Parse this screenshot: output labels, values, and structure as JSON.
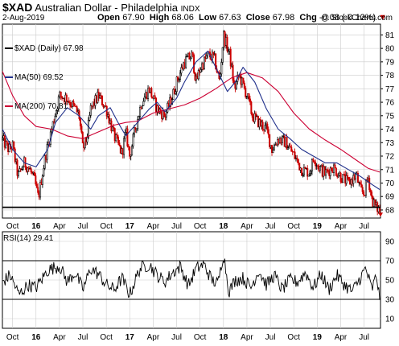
{
  "header": {
    "ticker": "$XAD",
    "name": "Australian Dollar - Philadelphia",
    "exchange": "INDX",
    "date": "2-Aug-2019",
    "open_label": "Open",
    "open": "67.90",
    "high_label": "High",
    "high": "68.06",
    "low_label": "Low",
    "low": "67.63",
    "close_label": "Close",
    "close": "67.98",
    "chg_label": "Chg",
    "chg": "-0.08 (-0.12%)",
    "chg_arrow": "▼",
    "copyright": "@ StockCharts.com"
  },
  "legend": {
    "price": "$XAD (Daily) 67.98",
    "ma50": "MA(50) 69.52",
    "ma200": "MA(200) 70.81"
  },
  "rsi_label": "RSI(14) 29.41",
  "colors": {
    "up": "#000000",
    "down": "#cc0000",
    "ma50": "#1f2f8a",
    "ma200": "#cc0033",
    "grid": "#cccccc",
    "support": "#000000",
    "arrow": "#cc0000"
  },
  "chart_data": [
    {
      "type": "line",
      "title": "$XAD Australian Dollar - Philadelphia",
      "ylim": [
        67.4,
        81.8
      ],
      "y_ticks": [
        68,
        69,
        70,
        71,
        72,
        73,
        74,
        75,
        76,
        77,
        78,
        79,
        80,
        81
      ],
      "x_tick_labels": [
        "Oct",
        "16",
        "Apr",
        "Jul",
        "Oct",
        "17",
        "Apr",
        "Jul",
        "Oct",
        "18",
        "Apr",
        "Jul",
        "Oct",
        "19",
        "Apr",
        "Jul"
      ],
      "x_ticks_month": [
        0,
        3,
        6,
        9,
        12,
        15,
        18,
        21,
        24,
        27,
        30,
        33,
        36,
        39,
        42,
        45
      ],
      "x_range_month": [
        -1.3,
        47.1
      ],
      "horizontal_line": 68.2,
      "series": [
        {
          "name": "$XAD (Daily) 67.98",
          "month": [
            -1.3,
            -0.5,
            0,
            0.7,
            1.5,
            2.2,
            2.8,
            3.3,
            4.2,
            5.2,
            6,
            7,
            8,
            8.5,
            9,
            9.5,
            10,
            11,
            12,
            13,
            14,
            14.5,
            15,
            15.7,
            16.5,
            17.5,
            18.5,
            19.5,
            20.5,
            21,
            22,
            23,
            23.5,
            24,
            25,
            25.8,
            26.5,
            27,
            27.8,
            28.4,
            29,
            30,
            30.7,
            31.5,
            32.5,
            33.2,
            34,
            35,
            36,
            37,
            38,
            38.6,
            39.2,
            40,
            41,
            42,
            43,
            44,
            44.5,
            45,
            45.5,
            46,
            46.5,
            47
          ],
          "values": [
            73.2,
            72.5,
            72.8,
            70.5,
            71.5,
            71,
            70.2,
            68.9,
            72,
            74.5,
            76.5,
            76.3,
            75.5,
            75.1,
            72.5,
            73.3,
            75.5,
            76.5,
            75.5,
            73.5,
            72.2,
            73.8,
            72,
            74,
            76,
            77,
            75.5,
            75,
            76.5,
            77.5,
            79,
            79.5,
            77.5,
            78.5,
            79.5,
            79.3,
            77.5,
            81,
            79.5,
            77,
            78,
            76.5,
            75,
            74.5,
            74,
            72.5,
            73.3,
            73,
            72.1,
            71,
            70.8,
            71.9,
            71.2,
            70.7,
            71.2,
            70.5,
            70,
            70.6,
            69.5,
            69.2,
            70.5,
            68.8,
            68.2,
            67.98
          ]
        },
        {
          "name": "MA(50) 69.52",
          "month": [
            -1.3,
            0,
            1.5,
            3,
            4.5,
            5.5,
            7,
            8.5,
            10,
            11,
            12.5,
            13.5,
            14.5,
            16,
            17.5,
            18.5,
            19.5,
            21,
            22,
            23.5,
            25,
            26.5,
            27.5,
            28.5,
            29.5,
            31,
            32.5,
            34,
            35.5,
            37,
            38.5,
            40,
            41.5,
            43,
            44.5,
            46,
            47
          ],
          "values": [
            74,
            72.5,
            71.5,
            71.2,
            72.5,
            74.5,
            75.6,
            75,
            74,
            75,
            75.6,
            74.5,
            73.5,
            74.5,
            75.5,
            76,
            75.3,
            76.3,
            77.5,
            79,
            79.8,
            78,
            76.8,
            77.5,
            78.6,
            77.5,
            75.5,
            74,
            73.3,
            72.5,
            72,
            71.5,
            71.5,
            71,
            70.5,
            69.9,
            69.52
          ]
        },
        {
          "name": "MA(200) 70.81",
          "month": [
            -1.3,
            0,
            1.5,
            3,
            5,
            7,
            9,
            11,
            13,
            14.5,
            16,
            18,
            20,
            22,
            24,
            26,
            28,
            30,
            32,
            34,
            36,
            38,
            40,
            42,
            44,
            45.5,
            47
          ],
          "values": [
            78.3,
            76.5,
            75,
            74.2,
            74,
            73.5,
            73.3,
            73.8,
            74.3,
            74.5,
            74.6,
            75.2,
            75.5,
            75.8,
            76.3,
            77,
            77.8,
            78.2,
            77.8,
            76.8,
            75.2,
            74,
            73.2,
            72.5,
            71.7,
            71.1,
            70.81
          ]
        }
      ]
    },
    {
      "type": "line",
      "title": "RSI(14) 29.41",
      "ylim": [
        0,
        100
      ],
      "y_ticks": [
        10,
        30,
        50,
        70,
        90
      ],
      "reference_lines": [
        30,
        70
      ],
      "series": [
        {
          "name": "RSI(14) 29.41",
          "month": [
            -1.3,
            -0.3,
            0.8,
            2,
            3,
            4.5,
            6,
            7,
            8,
            9,
            10,
            11,
            12,
            13,
            14,
            15,
            16.3,
            17.5,
            18.5,
            19.5,
            20.5,
            21.5,
            22.5,
            23.5,
            24.5,
            25.5,
            26.3,
            27,
            27.7,
            28.5,
            29.5,
            30.5,
            31.5,
            32.5,
            33.5,
            34.5,
            35.5,
            36.5,
            37.5,
            38.5,
            39.5,
            40.5,
            41.5,
            42.5,
            43.5,
            44.5,
            45.2,
            46,
            46.6,
            47
          ],
          "values": [
            48,
            55,
            35,
            45,
            42,
            60,
            65,
            48,
            58,
            40,
            62,
            56,
            45,
            40,
            52,
            35,
            62,
            66,
            55,
            48,
            58,
            64,
            44,
            62,
            66,
            50,
            46,
            78,
            38,
            50,
            52,
            42,
            60,
            45,
            55,
            40,
            50,
            48,
            58,
            42,
            56,
            40,
            55,
            45,
            38,
            52,
            62,
            40,
            55,
            29.41
          ]
        }
      ]
    }
  ]
}
